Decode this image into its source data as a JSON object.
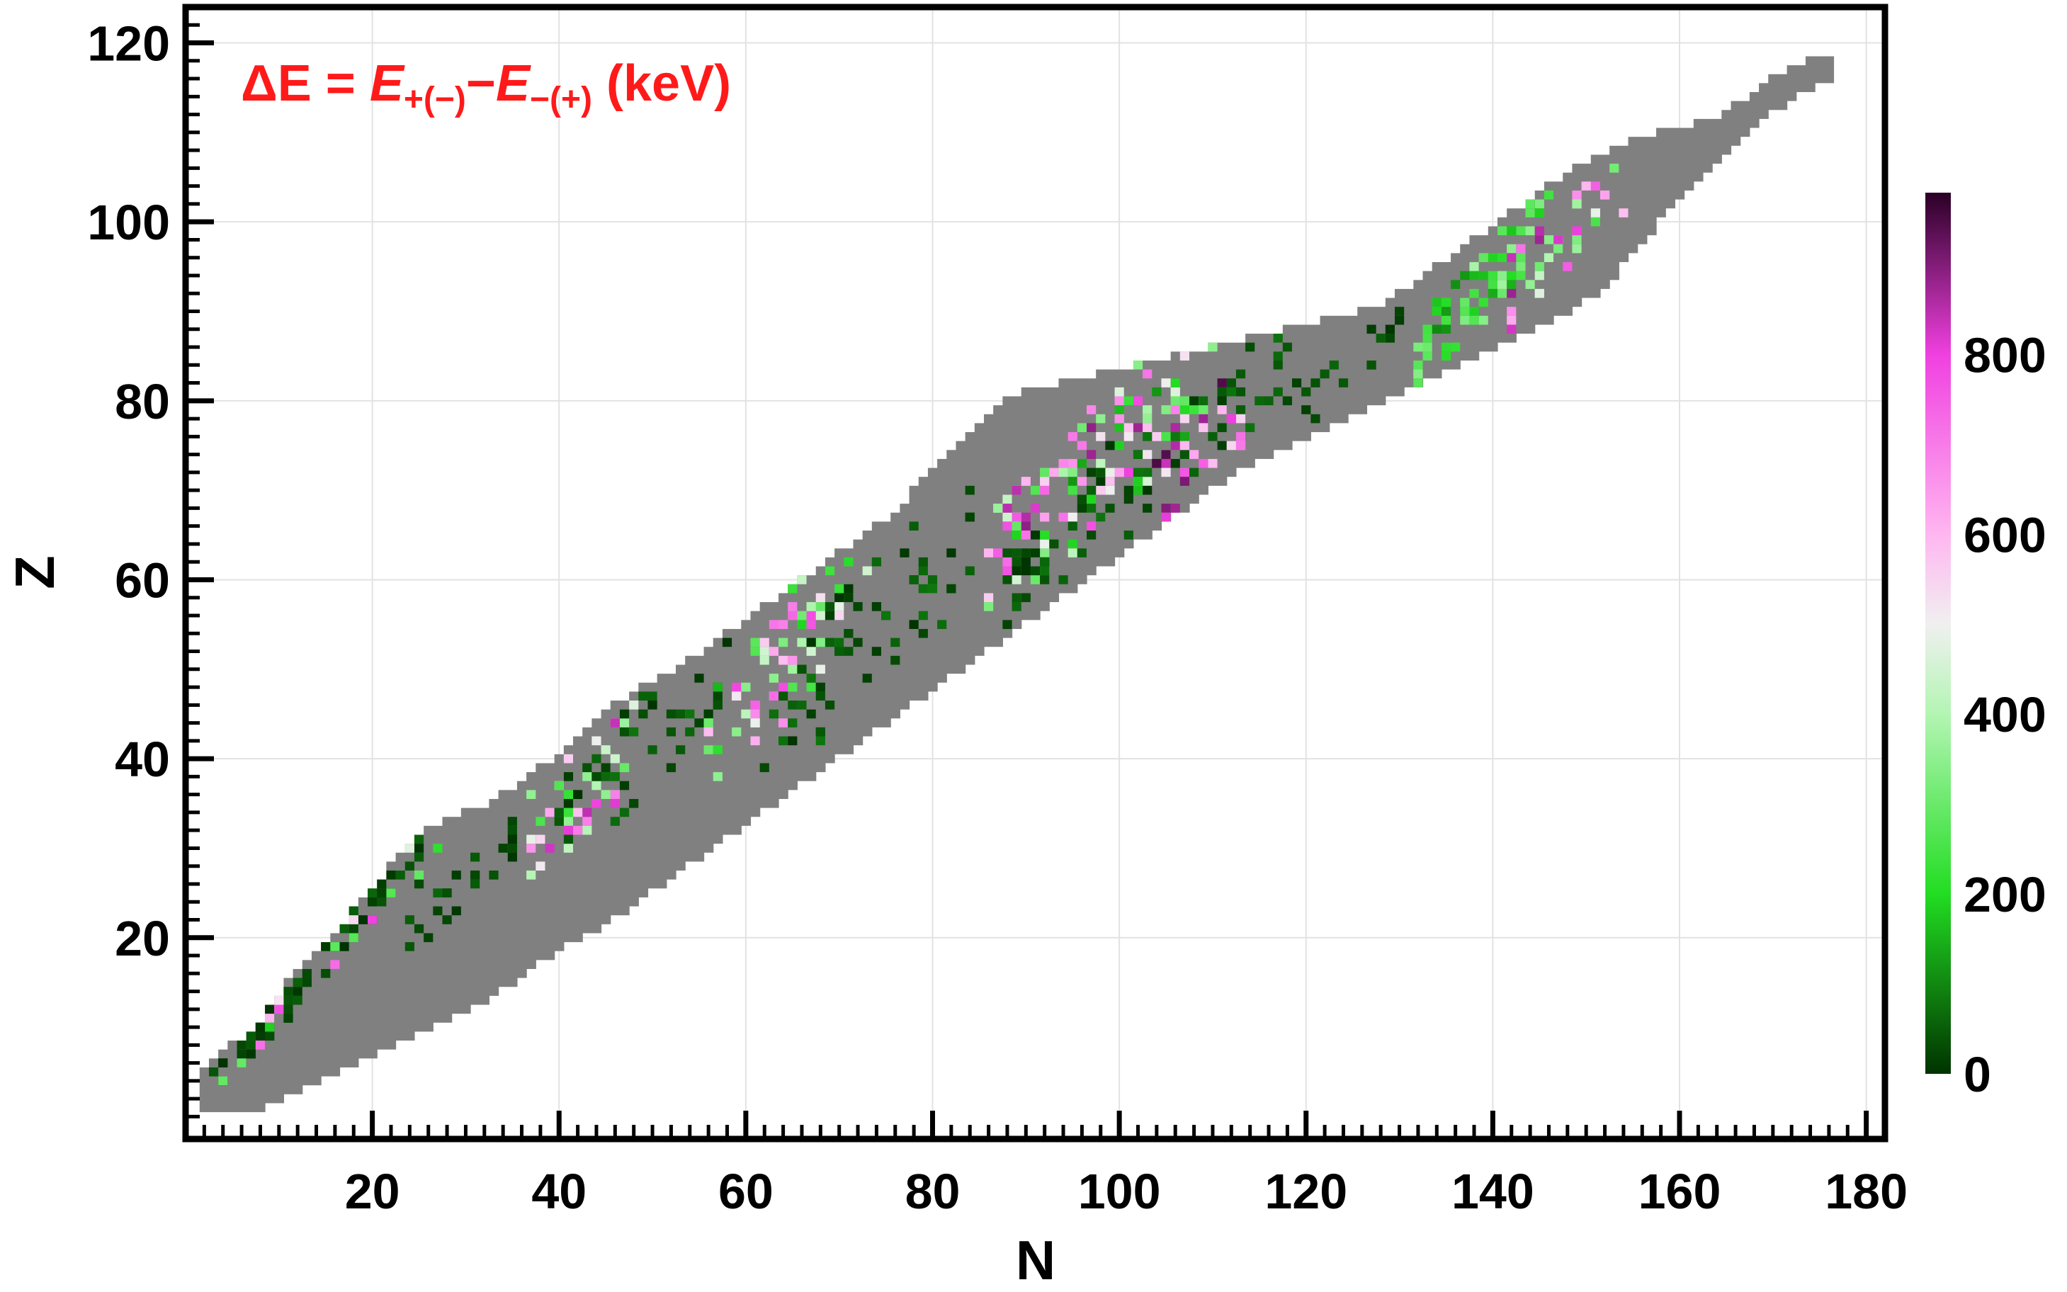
{
  "chart_data": {
    "type": "heatmap",
    "title": "",
    "annotation": {
      "lead": "ΔE = ",
      "term1": "E",
      "sub1": "+(−)",
      "minus": "−",
      "term2": "E",
      "sub2": "−(+)",
      "unit": " (keV)"
    },
    "xlabel": "N",
    "ylabel": "Z",
    "xlim": [
      0,
      182
    ],
    "ylim": [
      -2.5,
      124
    ],
    "xticks": [
      20,
      40,
      60,
      80,
      100,
      120,
      140,
      160,
      180
    ],
    "yticks": [
      20,
      40,
      60,
      80,
      100,
      120
    ],
    "grid": true,
    "colorbar": {
      "min": 0,
      "max": 980,
      "ticks": [
        0,
        200,
        400,
        600,
        800
      ],
      "stops": [
        {
          "v": 0,
          "color": "#003300"
        },
        {
          "v": 200,
          "color": "#22dd22"
        },
        {
          "v": 400,
          "color": "#b3f5b3"
        },
        {
          "v": 500,
          "color": "#f0f0f0"
        },
        {
          "v": 600,
          "color": "#ffb6f0"
        },
        {
          "v": 800,
          "color": "#f040e0"
        },
        {
          "v": 980,
          "color": "#2a0025"
        }
      ]
    },
    "nuclide_region": {
      "fill": "#808080",
      "z_ranges_by_n": [
        [
          2,
          1,
          5
        ],
        [
          8,
          1,
          10
        ],
        [
          12,
          3,
          16
        ],
        [
          16,
          5,
          20
        ],
        [
          20,
          7,
          25
        ],
        [
          24,
          9,
          30
        ],
        [
          28,
          11,
          33
        ],
        [
          32,
          13,
          34
        ],
        [
          36,
          16,
          37
        ],
        [
          40,
          19,
          40
        ],
        [
          44,
          21,
          44
        ],
        [
          48,
          24,
          47
        ],
        [
          52,
          27,
          49
        ],
        [
          56,
          30,
          52
        ],
        [
          60,
          33,
          55
        ],
        [
          64,
          36,
          58
        ],
        [
          68,
          39,
          61
        ],
        [
          72,
          42,
          64
        ],
        [
          76,
          45,
          67
        ],
        [
          80,
          48,
          72
        ],
        [
          84,
          51,
          76
        ],
        [
          88,
          54,
          80
        ],
        [
          92,
          57,
          81
        ],
        [
          96,
          60,
          82
        ],
        [
          100,
          63,
          83
        ],
        [
          104,
          66,
          84
        ],
        [
          108,
          69,
          85
        ],
        [
          112,
          72,
          86
        ],
        [
          116,
          74,
          87
        ],
        [
          120,
          76,
          88
        ],
        [
          124,
          78,
          89
        ],
        [
          128,
          80,
          90
        ],
        [
          132,
          82,
          93
        ],
        [
          136,
          84,
          96
        ],
        [
          140,
          86,
          99
        ],
        [
          144,
          88,
          102
        ],
        [
          148,
          90,
          105
        ],
        [
          152,
          93,
          107
        ],
        [
          156,
          98,
          109
        ],
        [
          160,
          103,
          110
        ],
        [
          164,
          107,
          111
        ],
        [
          168,
          111,
          114
        ],
        [
          172,
          114,
          117
        ],
        [
          176,
          116,
          118
        ]
      ]
    },
    "clusters": [
      {
        "n": [
          3,
          12
        ],
        "z_offset": 1.5,
        "spread": 2.2,
        "count": 42,
        "values": [
          0,
          60
        ]
      },
      {
        "n": [
          4,
          11
        ],
        "z_offset": 2,
        "spread": 3,
        "count": 10,
        "values": [
          150,
          850
        ]
      },
      {
        "n": [
          10,
          26
        ],
        "z_offset": 3.5,
        "spread": 2.5,
        "count": 45,
        "values": [
          0,
          60
        ]
      },
      {
        "n": [
          16,
          28
        ],
        "z_offset": 4,
        "spread": 3,
        "count": 10,
        "values": [
          200,
          800
        ]
      },
      {
        "n": [
          24,
          38
        ],
        "z_offset": -4,
        "spread": 2.5,
        "count": 25,
        "values": [
          0,
          60
        ]
      },
      {
        "n": [
          36,
          48
        ],
        "z_offset": -6,
        "spread": 5,
        "count": 45,
        "values": [
          200,
          850
        ]
      },
      {
        "n": [
          40,
          58
        ],
        "z_offset": -8,
        "spread": 6,
        "count": 40,
        "values": [
          0,
          80
        ]
      },
      {
        "n": [
          56,
          70
        ],
        "z_offset": -14,
        "spread": 6,
        "count": 55,
        "values": [
          150,
          800
        ]
      },
      {
        "n": [
          62,
          84
        ],
        "z_offset": -19,
        "spread": 7,
        "count": 60,
        "values": [
          0,
          80
        ]
      },
      {
        "n": [
          64,
          74
        ],
        "z_offset": -10,
        "spread": 5,
        "count": 15,
        "values": [
          150,
          700
        ]
      },
      {
        "n": [
          86,
          110
        ],
        "z_offset": -25,
        "spread": 7,
        "count": 160,
        "values": [
          100,
          900
        ]
      },
      {
        "n": [
          88,
          100
        ],
        "z_offset": -29,
        "spread": 5,
        "count": 35,
        "values": [
          0,
          80
        ]
      },
      {
        "n": [
          100,
          118
        ],
        "z_offset": -32,
        "spread": 5,
        "count": 35,
        "values": [
          0,
          80
        ]
      },
      {
        "n": [
          104,
          114
        ],
        "z_offset": -34,
        "spread": 5,
        "count": 25,
        "values": [
          500,
          950
        ]
      },
      {
        "n": [
          118,
          130
        ],
        "z_offset": -40,
        "spread": 4,
        "count": 18,
        "values": [
          0,
          60
        ]
      },
      {
        "n": [
          132,
          146
        ],
        "z_offset": -46,
        "spread": 4,
        "count": 70,
        "values": [
          100,
          400
        ]
      },
      {
        "n": [
          142,
          154
        ],
        "z_offset": -50,
        "spread": 4,
        "count": 35,
        "values": [
          200,
          900
        ]
      }
    ]
  }
}
